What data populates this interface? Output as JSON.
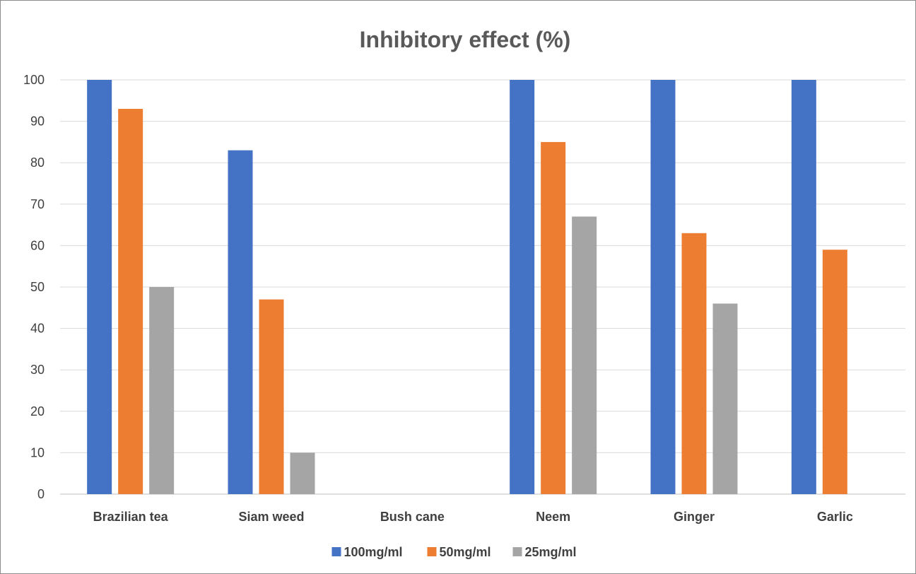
{
  "chart_data": {
    "type": "bar",
    "title": "Inhibitory effect (%)",
    "xlabel": "",
    "ylabel": "",
    "ylim": [
      0,
      100
    ],
    "yticks": [
      "0",
      "10",
      "20",
      "30",
      "40",
      "50",
      "60",
      "70",
      "80",
      "90",
      "100"
    ],
    "grid": true,
    "legend_position": "bottom",
    "categories": [
      "Brazilian tea",
      "Siam weed",
      "Bush cane",
      "Neem",
      "Ginger",
      "Garlic"
    ],
    "series": [
      {
        "name": "100mg/ml",
        "color": "#4472c4",
        "values": [
          100,
          83,
          0,
          100,
          100,
          100
        ]
      },
      {
        "name": "50mg/ml",
        "color": "#ed7d31",
        "values": [
          93,
          47,
          0,
          85,
          63,
          59
        ]
      },
      {
        "name": "25mg/ml",
        "color": "#a5a5a5",
        "values": [
          50,
          10,
          0,
          67,
          46,
          0
        ]
      }
    ]
  }
}
